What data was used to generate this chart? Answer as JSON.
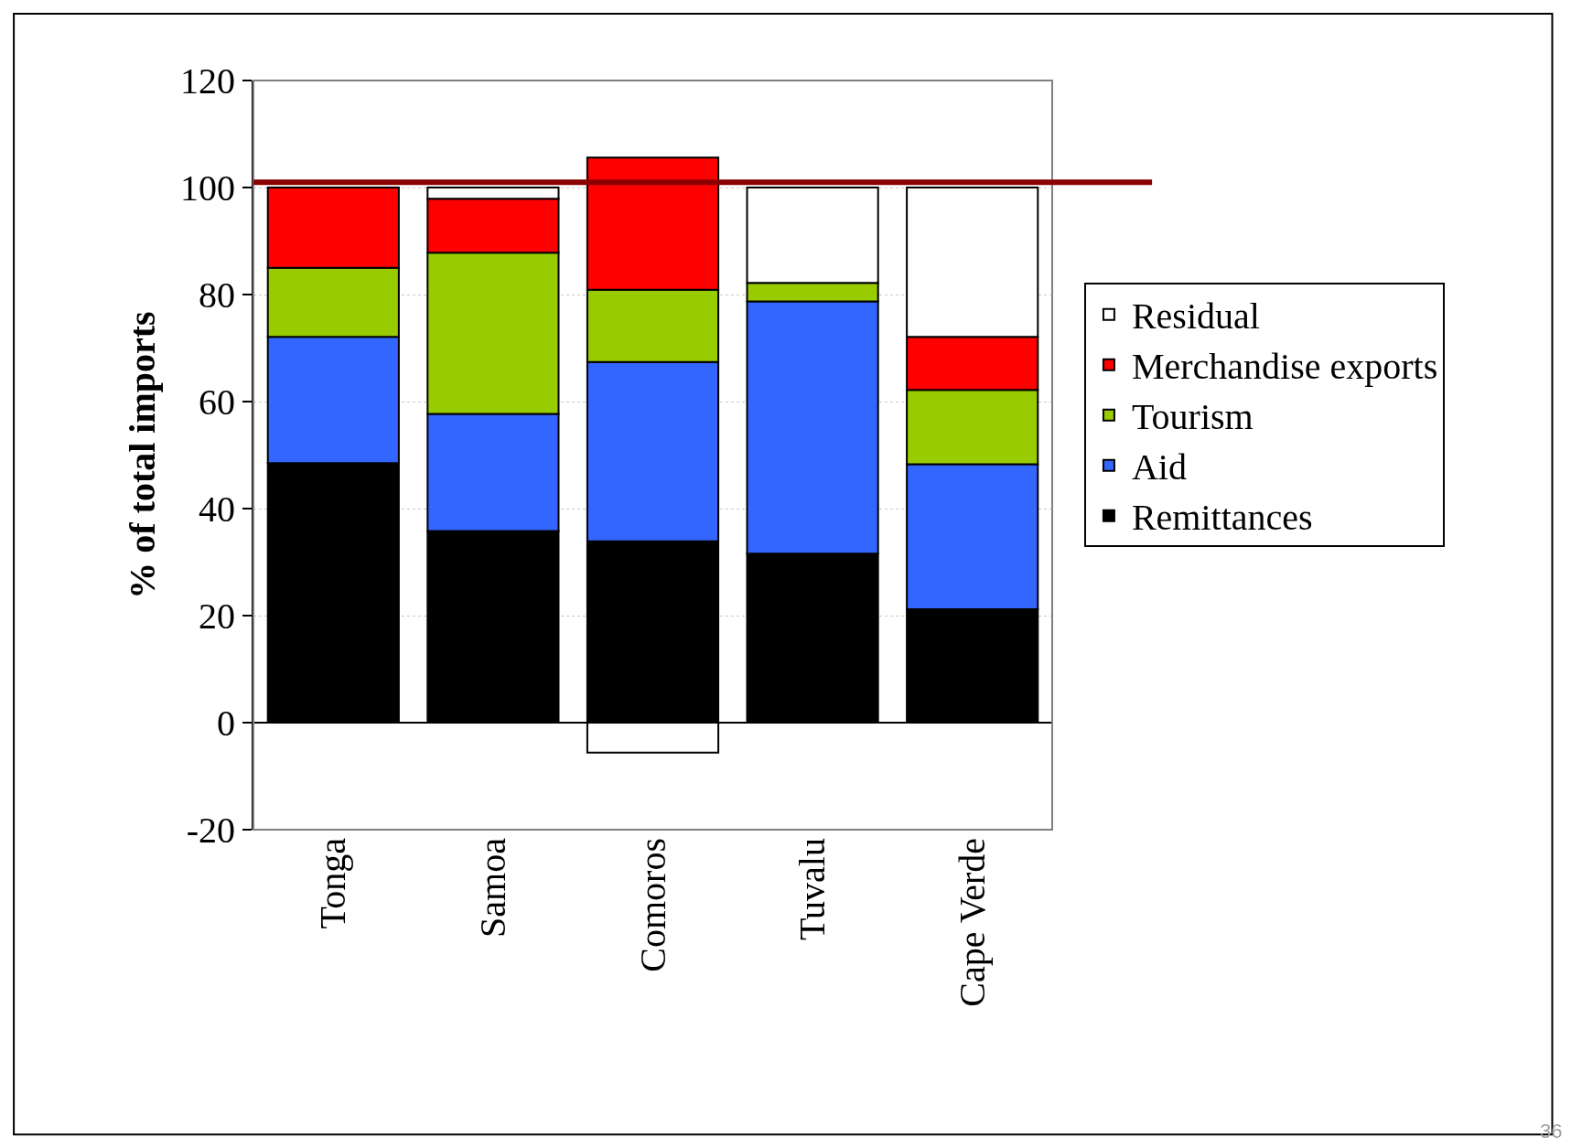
{
  "chart_data": {
    "type": "bar",
    "stacked": true,
    "ylabel": "% of total imports",
    "categories": [
      "Tonga",
      "Samoa",
      "Comoros",
      "Tuvalu",
      "Cape Verde"
    ],
    "series": [
      {
        "name": "Remittances",
        "color": "#000000",
        "values": [
          48.5,
          35.8,
          33.9,
          31.6,
          21.2
        ]
      },
      {
        "name": "Aid",
        "color": "#3366ff",
        "values": [
          23.6,
          21.9,
          33.5,
          47.1,
          27.1
        ]
      },
      {
        "name": "Tourism",
        "color": "#99cc00",
        "values": [
          12.9,
          30.1,
          13.5,
          3.5,
          13.9
        ]
      },
      {
        "name": "Merchandise exports",
        "color": "#ff0000",
        "values": [
          15.0,
          10.1,
          24.7,
          null,
          9.9
        ]
      },
      {
        "name": "Residual",
        "color": "#ffffff",
        "values": [
          null,
          2.1,
          -5.6,
          17.8,
          27.9
        ]
      }
    ],
    "ylim": [
      -20,
      120
    ],
    "yticks": [
      -20,
      0,
      20,
      40,
      60,
      80,
      100,
      120
    ],
    "grid": "y",
    "legend": "right",
    "ref_lines": [
      {
        "axis": "y",
        "value": 101,
        "color": "#8b0000"
      }
    ],
    "annotations": [
      "36"
    ]
  }
}
